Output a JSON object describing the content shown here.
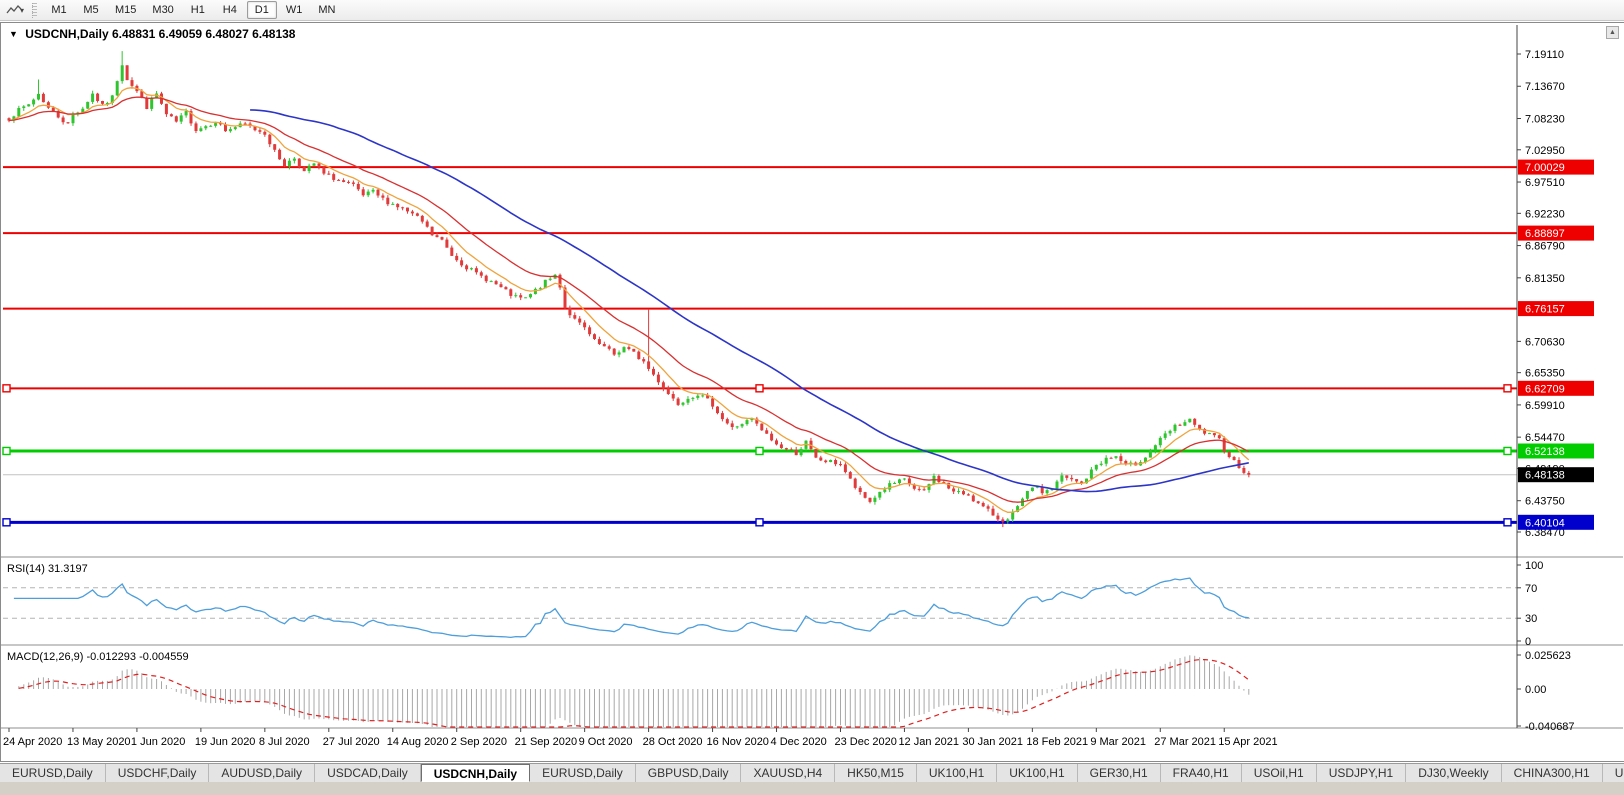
{
  "toolbar": {
    "chart_tool_icon": "chart-line-icon",
    "dropdown_caret": "▾",
    "timeframes": [
      "M1",
      "M5",
      "M15",
      "M30",
      "H1",
      "H4",
      "D1",
      "W1",
      "MN"
    ],
    "active_timeframe": "D1"
  },
  "header": {
    "collapse_glyph": "▼",
    "symbol_title": "USDCNH,Daily",
    "ohlc": "6.48831 6.49059 6.48027 6.48138"
  },
  "window_controls": {
    "scroll_up": "▲"
  },
  "price_axis": {
    "ticks": [
      "7.19110",
      "7.13670",
      "7.08230",
      "7.02950",
      "6.97510",
      "6.92230",
      "6.86790",
      "6.81350",
      "6.70630",
      "6.65350",
      "6.59910",
      "6.54470",
      "6.49190",
      "6.43750",
      "6.38470"
    ]
  },
  "levels": [
    {
      "label": "7.00029",
      "value": 7.00029,
      "color": "#ee0000",
      "width": 2,
      "handles": false
    },
    {
      "label": "6.88897",
      "value": 6.88897,
      "color": "#ee0000",
      "width": 2,
      "handles": false
    },
    {
      "label": "6.76157",
      "value": 6.76157,
      "color": "#ee0000",
      "width": 2,
      "handles": false
    },
    {
      "label": "6.62709",
      "value": 6.62709,
      "color": "#ee0000",
      "width": 2,
      "handles": true
    },
    {
      "label": "6.52138",
      "value": 6.52138,
      "color": "#00cc00",
      "width": 3,
      "handles": true
    },
    {
      "label": "6.40104",
      "value": 6.40104,
      "color": "#0000cc",
      "width": 3,
      "handles": true
    }
  ],
  "current_price": {
    "label": "6.48138",
    "value": 6.48138,
    "badge_color": "#000000",
    "line_color": "#c2c2c2"
  },
  "indicators": {
    "rsi": {
      "label": "RSI(14) 31.3197",
      "value": 31.3197,
      "axis_ticks": [
        "100",
        "70",
        "30",
        "0"
      ],
      "axis_values": [
        100,
        70,
        30,
        0
      ],
      "level_lines": [
        70,
        30
      ],
      "line_color": "#4d9edb"
    },
    "macd": {
      "label": "MACD(12,26,9) -0.012293 -0.004559",
      "values": [
        "-0.012293",
        "-0.004559"
      ],
      "axis_ticks": [
        "0.025623",
        "0.00",
        "-0.040687"
      ],
      "histogram_color": "#a8a8a8",
      "signal_color": "#e02020"
    }
  },
  "date_axis": {
    "bars_per_label": 13,
    "labels": [
      "24 Apr 2020",
      "13 May 2020",
      "1 Jun 2020",
      "19 Jun 2020",
      "8 Jul 2020",
      "27 Jul 2020",
      "14 Aug 2020",
      "2 Sep 2020",
      "21 Sep 2020",
      "9 Oct 2020",
      "28 Oct 2020",
      "16 Nov 2020",
      "4 Dec 2020",
      "23 Dec 2020",
      "12 Jan 2021",
      "30 Jan 2021",
      "18 Feb 2021",
      "9 Mar 2021",
      "27 Mar 2021",
      "15 Apr 2021"
    ]
  },
  "tabs": {
    "active_index": 4,
    "scroll_left": "◂",
    "scroll_right": "▸",
    "items": [
      "EURUSD,Daily",
      "USDCHF,Daily",
      "AUDUSD,Daily",
      "USDCAD,Daily",
      "USDCNH,Daily",
      "EURUSD,Daily",
      "GBPUSD,Daily",
      "XAUUSD,H4",
      "HK50,M15",
      "UK100,H1",
      "UK100,H1",
      "GER30,H1",
      "FRA40,H1",
      "USOil,H1",
      "USDJPY,H1",
      "DJ30,Weekly",
      "CHINA300,H1",
      "U"
    ]
  },
  "chart_data": {
    "type": "candlestick",
    "symbol": "USDCNH",
    "timeframe": "Daily",
    "open": "6.48831",
    "high": "6.49059",
    "low": "6.48027",
    "close": "6.48138",
    "bars": 253,
    "price_range": [
      6.3847,
      7.1911
    ],
    "bull_color": "#2fc52f",
    "bear_color": "#e03a3a",
    "close_anchors": [
      [
        0,
        7.083
      ],
      [
        2,
        7.096
      ],
      [
        4,
        7.106
      ],
      [
        6,
        7.124
      ],
      [
        8,
        7.1
      ],
      [
        10,
        7.086
      ],
      [
        12,
        7.072
      ],
      [
        13,
        7.09
      ],
      [
        15,
        7.1
      ],
      [
        17,
        7.124
      ],
      [
        19,
        7.103
      ],
      [
        21,
        7.118
      ],
      [
        22,
        7.148
      ],
      [
        23,
        7.175
      ],
      [
        24,
        7.15
      ],
      [
        26,
        7.128
      ],
      [
        28,
        7.102
      ],
      [
        30,
        7.124
      ],
      [
        32,
        7.088
      ],
      [
        34,
        7.076
      ],
      [
        36,
        7.092
      ],
      [
        38,
        7.064
      ],
      [
        40,
        7.07
      ],
      [
        42,
        7.078
      ],
      [
        44,
        7.062
      ],
      [
        46,
        7.068
      ],
      [
        48,
        7.072
      ],
      [
        50,
        7.064
      ],
      [
        52,
        7.058
      ],
      [
        54,
        7.026
      ],
      [
        56,
        7.004
      ],
      [
        58,
        7.016
      ],
      [
        60,
        6.992
      ],
      [
        62,
        7.006
      ],
      [
        64,
        6.988
      ],
      [
        66,
        6.982
      ],
      [
        68,
        6.974
      ],
      [
        70,
        6.968
      ],
      [
        72,
        6.952
      ],
      [
        74,
        6.958
      ],
      [
        76,
        6.946
      ],
      [
        78,
        6.938
      ],
      [
        80,
        6.93
      ],
      [
        82,
        6.92
      ],
      [
        84,
        6.908
      ],
      [
        86,
        6.886
      ],
      [
        88,
        6.876
      ],
      [
        90,
        6.852
      ],
      [
        93,
        6.832
      ],
      [
        95,
        6.82
      ],
      [
        97,
        6.812
      ],
      [
        99,
        6.802
      ],
      [
        101,
        6.79
      ],
      [
        103,
        6.78
      ],
      [
        105,
        6.778
      ],
      [
        107,
        6.792
      ],
      [
        109,
        6.806
      ],
      [
        111,
        6.818
      ],
      [
        112,
        6.8
      ],
      [
        113,
        6.764
      ],
      [
        115,
        6.742
      ],
      [
        117,
        6.728
      ],
      [
        119,
        6.706
      ],
      [
        121,
        6.696
      ],
      [
        123,
        6.684
      ],
      [
        125,
        6.696
      ],
      [
        127,
        6.686
      ],
      [
        129,
        6.672
      ],
      [
        130,
        6.66
      ],
      [
        132,
        6.64
      ],
      [
        134,
        6.618
      ],
      [
        136,
        6.602
      ],
      [
        138,
        6.612
      ],
      [
        140,
        6.618
      ],
      [
        143,
        6.6
      ],
      [
        145,
        6.576
      ],
      [
        147,
        6.56
      ],
      [
        149,
        6.568
      ],
      [
        151,
        6.574
      ],
      [
        153,
        6.556
      ],
      [
        156,
        6.532
      ],
      [
        158,
        6.524
      ],
      [
        160,
        6.518
      ],
      [
        162,
        6.536
      ],
      [
        164,
        6.508
      ],
      [
        166,
        6.504
      ],
      [
        169,
        6.5
      ],
      [
        171,
        6.472
      ],
      [
        173,
        6.448
      ],
      [
        175,
        6.436
      ],
      [
        177,
        6.452
      ],
      [
        179,
        6.464
      ],
      [
        182,
        6.472
      ],
      [
        184,
        6.458
      ],
      [
        186,
        6.452
      ],
      [
        188,
        6.478
      ],
      [
        190,
        6.466
      ],
      [
        192,
        6.452
      ],
      [
        195,
        6.448
      ],
      [
        197,
        6.432
      ],
      [
        199,
        6.42
      ],
      [
        201,
        6.408
      ],
      [
        203,
        6.404
      ],
      [
        205,
        6.426
      ],
      [
        207,
        6.45
      ],
      [
        208,
        6.462
      ],
      [
        210,
        6.452
      ],
      [
        212,
        6.458
      ],
      [
        214,
        6.478
      ],
      [
        216,
        6.472
      ],
      [
        218,
        6.466
      ],
      [
        221,
        6.498
      ],
      [
        223,
        6.508
      ],
      [
        225,
        6.512
      ],
      [
        227,
        6.496
      ],
      [
        229,
        6.5
      ],
      [
        231,
        6.512
      ],
      [
        233,
        6.532
      ],
      [
        235,
        6.548
      ],
      [
        237,
        6.562
      ],
      [
        239,
        6.57
      ],
      [
        240,
        6.572
      ],
      [
        242,
        6.556
      ],
      [
        244,
        6.548
      ],
      [
        246,
        6.54
      ],
      [
        247,
        6.524
      ],
      [
        249,
        6.504
      ],
      [
        251,
        6.488
      ],
      [
        252,
        6.48138
      ]
    ],
    "spikes": [
      {
        "bar": 6,
        "high": 7.148
      },
      {
        "bar": 23,
        "high": 7.196
      },
      {
        "bar": 130,
        "high": 6.761
      },
      {
        "bar": 202,
        "low": 6.393
      }
    ],
    "moving_averages": [
      {
        "name": "fast",
        "type": "ema",
        "period": 8,
        "color": "#f0a33c"
      },
      {
        "name": "medium",
        "type": "ema",
        "period": 20,
        "color": "#d93030"
      },
      {
        "name": "slow",
        "type": "sma",
        "period": 50,
        "color": "#2c35c8"
      }
    ]
  }
}
